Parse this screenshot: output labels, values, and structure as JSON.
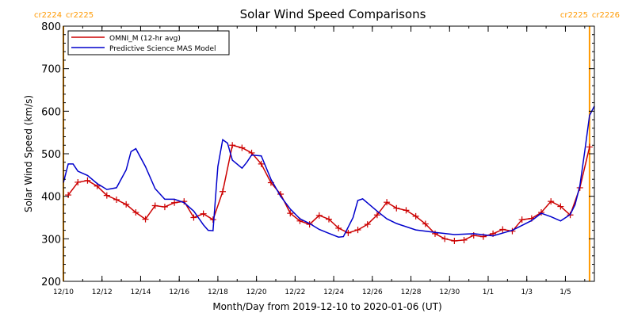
{
  "chart_data": {
    "type": "line",
    "title": "Solar Wind Speed Comparisons",
    "xlabel": "Month/Day from 2019-12-10 to 2020-01-06 (UT)",
    "ylabel": "Solar Wind Speed (km/s)",
    "x_range": [
      "2019-12-10 00:00",
      "2020-01-06 12:00"
    ],
    "ylim": [
      200,
      800
    ],
    "yticks": [
      200,
      300,
      400,
      500,
      600,
      700,
      800
    ],
    "xticks": [
      {
        "date": "2019-12-10",
        "label": "12/10"
      },
      {
        "date": "2019-12-12",
        "label": "12/12"
      },
      {
        "date": "2019-12-14",
        "label": "12/14"
      },
      {
        "date": "2019-12-16",
        "label": "12/16"
      },
      {
        "date": "2019-12-18",
        "label": "12/18"
      },
      {
        "date": "2019-12-20",
        "label": "12/20"
      },
      {
        "date": "2019-12-22",
        "label": "12/22"
      },
      {
        "date": "2019-12-24",
        "label": "12/24"
      },
      {
        "date": "2019-12-26",
        "label": "12/26"
      },
      {
        "date": "2019-12-28",
        "label": "12/28"
      },
      {
        "date": "2019-12-30",
        "label": "12/30"
      },
      {
        "date": "2020-01-01",
        "label": "1/1"
      },
      {
        "date": "2020-01-03",
        "label": "1/3"
      },
      {
        "date": "2020-01-05",
        "label": "1/5"
      }
    ],
    "legend_position": "top-left",
    "carrington_markers": [
      {
        "date": "2019-12-10 00:00",
        "left_label": "cr2224",
        "right_label": "cr2225",
        "color": "#ff9900"
      },
      {
        "date": "2020-01-06 06:00",
        "left_label": "cr2225",
        "right_label": "cr2226",
        "color": "#ff9900"
      }
    ],
    "series": [
      {
        "name": "OMNI_M (12-hr avg)",
        "color": "#cc0000",
        "marker": "plus",
        "points": [
          [
            "2019-12-10 06:00",
            403
          ],
          [
            "2019-12-10 18:00",
            433
          ],
          [
            "2019-12-11 06:00",
            437
          ],
          [
            "2019-12-11 18:00",
            424
          ],
          [
            "2019-12-12 06:00",
            402
          ],
          [
            "2019-12-12 18:00",
            392
          ],
          [
            "2019-12-13 06:00",
            381
          ],
          [
            "2019-12-13 18:00",
            362
          ],
          [
            "2019-12-14 06:00",
            346
          ],
          [
            "2019-12-14 18:00",
            378
          ],
          [
            "2019-12-15 06:00",
            375
          ],
          [
            "2019-12-15 18:00",
            385
          ],
          [
            "2019-12-16 06:00",
            388
          ],
          [
            "2019-12-16 18:00",
            350
          ],
          [
            "2019-12-17 06:00",
            359
          ],
          [
            "2019-12-17 18:00",
            345
          ],
          [
            "2019-12-18 06:00",
            411
          ],
          [
            "2019-12-18 18:00",
            520
          ],
          [
            "2019-12-19 06:00",
            514
          ],
          [
            "2019-12-19 18:00",
            502
          ],
          [
            "2019-12-20 06:00",
            476
          ],
          [
            "2019-12-20 18:00",
            432
          ],
          [
            "2019-12-21 06:00",
            405
          ],
          [
            "2019-12-21 18:00",
            360
          ],
          [
            "2019-12-22 06:00",
            342
          ],
          [
            "2019-12-22 18:00",
            334
          ],
          [
            "2019-12-23 06:00",
            355
          ],
          [
            "2019-12-23 18:00",
            346
          ],
          [
            "2019-12-24 06:00",
            325
          ],
          [
            "2019-12-24 18:00",
            314
          ],
          [
            "2019-12-25 06:00",
            321
          ],
          [
            "2019-12-25 18:00",
            334
          ],
          [
            "2019-12-26 06:00",
            356
          ],
          [
            "2019-12-26 18:00",
            386
          ],
          [
            "2019-12-27 06:00",
            372
          ],
          [
            "2019-12-27 18:00",
            367
          ],
          [
            "2019-12-28 06:00",
            353
          ],
          [
            "2019-12-28 18:00",
            335
          ],
          [
            "2019-12-29 06:00",
            312
          ],
          [
            "2019-12-29 18:00",
            300
          ],
          [
            "2019-12-30 06:00",
            295
          ],
          [
            "2019-12-30 18:00",
            297
          ],
          [
            "2019-12-31 06:00",
            308
          ],
          [
            "2019-12-31 18:00",
            305
          ],
          [
            "2020-01-01 06:00",
            312
          ],
          [
            "2020-01-01 18:00",
            322
          ],
          [
            "2020-01-02 06:00",
            318
          ],
          [
            "2020-01-02 18:00",
            345
          ],
          [
            "2020-01-03 06:00",
            348
          ],
          [
            "2020-01-03 18:00",
            362
          ],
          [
            "2020-01-04 06:00",
            388
          ],
          [
            "2020-01-04 18:00",
            376
          ],
          [
            "2020-01-05 06:00",
            356
          ],
          [
            "2020-01-05 18:00",
            420
          ],
          [
            "2020-01-06 06:00",
            516
          ]
        ]
      },
      {
        "name": "Predictive Science MAS Model",
        "color": "#0000cc",
        "marker": "none",
        "points": [
          [
            "2019-12-10 00:00",
            432
          ],
          [
            "2019-12-10 06:00",
            476
          ],
          [
            "2019-12-10 12:00",
            476
          ],
          [
            "2019-12-10 18:00",
            459
          ],
          [
            "2019-12-11 06:00",
            449
          ],
          [
            "2019-12-11 18:00",
            430
          ],
          [
            "2019-12-12 06:00",
            416
          ],
          [
            "2019-12-12 18:00",
            420
          ],
          [
            "2019-12-13 06:00",
            462
          ],
          [
            "2019-12-13 12:00",
            505
          ],
          [
            "2019-12-13 18:00",
            512
          ],
          [
            "2019-12-14 06:00",
            470
          ],
          [
            "2019-12-14 18:00",
            418
          ],
          [
            "2019-12-15 06:00",
            393
          ],
          [
            "2019-12-15 18:00",
            393
          ],
          [
            "2019-12-16 06:00",
            385
          ],
          [
            "2019-12-16 18:00",
            365
          ],
          [
            "2019-12-17 06:00",
            333
          ],
          [
            "2019-12-17 12:00",
            320
          ],
          [
            "2019-12-17 18:00",
            319
          ],
          [
            "2019-12-18 00:00",
            470
          ],
          [
            "2019-12-18 06:00",
            533
          ],
          [
            "2019-12-18 12:00",
            525
          ],
          [
            "2019-12-18 18:00",
            485
          ],
          [
            "2019-12-19 06:00",
            466
          ],
          [
            "2019-12-19 12:00",
            480
          ],
          [
            "2019-12-19 18:00",
            497
          ],
          [
            "2019-12-20 06:00",
            495
          ],
          [
            "2019-12-20 18:00",
            440
          ],
          [
            "2019-12-21 06:00",
            400
          ],
          [
            "2019-12-21 18:00",
            370
          ],
          [
            "2019-12-22 06:00",
            347
          ],
          [
            "2019-12-22 18:00",
            336
          ],
          [
            "2019-12-23 06:00",
            322
          ],
          [
            "2019-12-23 18:00",
            313
          ],
          [
            "2019-12-24 06:00",
            304
          ],
          [
            "2019-12-24 12:00",
            305
          ],
          [
            "2019-12-25 00:00",
            350
          ],
          [
            "2019-12-25 06:00",
            390
          ],
          [
            "2019-12-25 12:00",
            394
          ],
          [
            "2019-12-26 06:00",
            365
          ],
          [
            "2019-12-26 18:00",
            347
          ],
          [
            "2019-12-27 06:00",
            336
          ],
          [
            "2019-12-28 06:00",
            321
          ],
          [
            "2019-12-29 06:00",
            315
          ],
          [
            "2019-12-30 06:00",
            310
          ],
          [
            "2019-12-31 06:00",
            312
          ],
          [
            "2020-01-01 06:00",
            307
          ],
          [
            "2020-01-02 06:00",
            320
          ],
          [
            "2020-01-03 06:00",
            343
          ],
          [
            "2020-01-03 18:00",
            360
          ],
          [
            "2020-01-04 06:00",
            352
          ],
          [
            "2020-01-04 18:00",
            342
          ],
          [
            "2020-01-05 06:00",
            357
          ],
          [
            "2020-01-05 12:00",
            380
          ],
          [
            "2020-01-05 18:00",
            425
          ],
          [
            "2020-01-06 00:00",
            505
          ],
          [
            "2020-01-06 06:00",
            590
          ],
          [
            "2020-01-06 12:00",
            612
          ]
        ]
      }
    ]
  }
}
